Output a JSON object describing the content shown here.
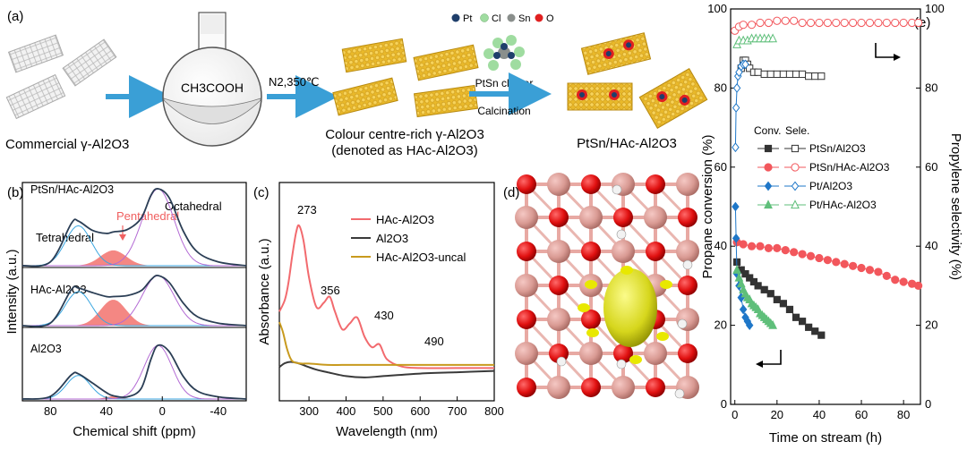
{
  "panel_a": {
    "label": "(a)",
    "commercial_label": "Commercial γ-Al2O3",
    "flask_text": "CH3COOH",
    "condition_text": "N2,350℃",
    "hac_line1": "Colour centre-rich γ-Al2O3",
    "hac_line2": "(denoted as HAc-Al2O3)",
    "cluster_label": "PtSn cluster",
    "calcination_label": "Calcination",
    "product_label": "PtSn/HAc-Al2O3",
    "legend": [
      {
        "name": "Pt",
        "color": "#1f3f6b"
      },
      {
        "name": "Cl",
        "color": "#9fdca0"
      },
      {
        "name": "Sn",
        "color": "#8a8f8c"
      },
      {
        "name": "O",
        "color": "#e02020"
      }
    ]
  },
  "panel_b": {
    "label": "(b)",
    "title": "PtSn/HAc-Al2O3",
    "ylabel": "Intensity (a.u.)",
    "xlabel": "Chemical shift (ppm)",
    "xticks": [
      "80",
      "40",
      "0",
      "-40"
    ],
    "sample_labels": [
      "HAc-Al2O3",
      "Al2O3"
    ],
    "annotations": {
      "tetra": "Tetrahedral",
      "penta": "Pentahedral",
      "octa": "Octahedral"
    }
  },
  "panel_c": {
    "label": "(c)",
    "ylabel": "Absorbance (a.u.)",
    "xlabel": "Wavelength (nm)",
    "xticks": [
      "300",
      "400",
      "500",
      "600",
      "700",
      "800"
    ],
    "peak_labels": [
      "273",
      "356",
      "430",
      "490"
    ],
    "legend": [
      {
        "name": "HAc-Al2O3",
        "color": "#f26a6e"
      },
      {
        "name": "Al2O3",
        "color": "#3a3a3a"
      },
      {
        "name": "HAc-Al2O3-uncal",
        "color": "#c89a1e"
      }
    ]
  },
  "panel_d": {
    "label": "(d)"
  },
  "panel_e": {
    "label": "(e)",
    "ylabel_left": "Propane conversion (%)",
    "ylabel_right": "Propylene selectivity (%)",
    "xlabel": "Time on stream (h)",
    "legend_header_conv": "Conv.",
    "legend_header_sele": "Sele.",
    "legend": [
      {
        "name": "PtSn/Al2O3",
        "color": "#333333",
        "marker": "square"
      },
      {
        "name": "PtSn/HAc-Al2O3",
        "color": "#f2575c",
        "marker": "circle"
      },
      {
        "name": "Pt/Al2O3",
        "color": "#1f77c8",
        "marker": "diamond"
      },
      {
        "name": "Pt/HAc-Al2O3",
        "color": "#5fbf7a",
        "marker": "triangle"
      }
    ]
  },
  "chart_data": [
    {
      "type": "line",
      "panel": "b",
      "xlabel": "Chemical shift (ppm)",
      "ylabel": "Intensity (a.u.)",
      "xlim": [
        100,
        -60
      ],
      "x_reversed": true,
      "xticks": [
        80,
        40,
        0,
        -40
      ],
      "series": [
        {
          "name": "PtSn/HAc-Al2O3",
          "x": [
            100,
            80,
            65,
            60,
            50,
            40,
            35,
            25,
            15,
            8,
            3,
            -5,
            -15,
            -25,
            -40,
            -60
          ],
          "y": [
            0.0,
            0.05,
            0.55,
            0.58,
            0.46,
            0.42,
            0.44,
            0.47,
            0.62,
            0.92,
            1.0,
            0.88,
            0.45,
            0.18,
            0.05,
            0.0
          ]
        },
        {
          "name": "HAc-Al2O3",
          "x": [
            100,
            80,
            65,
            60,
            50,
            40,
            35,
            25,
            15,
            8,
            3,
            -5,
            -15,
            -25,
            -40,
            -60
          ],
          "y": [
            0.0,
            0.05,
            0.72,
            0.75,
            0.66,
            0.58,
            0.58,
            0.6,
            0.7,
            0.92,
            1.0,
            0.86,
            0.45,
            0.18,
            0.05,
            0.0
          ]
        },
        {
          "name": "Al2O3",
          "x": [
            100,
            80,
            65,
            60,
            50,
            40,
            35,
            25,
            15,
            8,
            3,
            -5,
            -15,
            -25,
            -40,
            -60
          ],
          "y": [
            0.0,
            0.05,
            0.45,
            0.47,
            0.3,
            0.12,
            0.06,
            0.04,
            0.2,
            0.75,
            1.0,
            0.88,
            0.42,
            0.15,
            0.04,
            0.0
          ]
        }
      ]
    },
    {
      "type": "line",
      "panel": "c",
      "xlabel": "Wavelength (nm)",
      "ylabel": "Absorbance (a.u.)",
      "xlim": [
        220,
        800
      ],
      "xticks": [
        300,
        400,
        500,
        600,
        700,
        800
      ],
      "series": [
        {
          "name": "HAc-Al2O3",
          "x": [
            220,
            235,
            245,
            255,
            265,
            273,
            285,
            300,
            320,
            340,
            356,
            370,
            390,
            410,
            430,
            450,
            470,
            490,
            510,
            550,
            600,
            700,
            800
          ],
          "y": [
            0.42,
            0.5,
            0.62,
            0.8,
            0.95,
            1.0,
            0.9,
            0.65,
            0.45,
            0.48,
            0.52,
            0.42,
            0.3,
            0.34,
            0.38,
            0.25,
            0.18,
            0.2,
            0.1,
            0.05,
            0.04,
            0.04,
            0.04
          ]
        },
        {
          "name": "Al2O3",
          "x": [
            220,
            235,
            250,
            270,
            290,
            320,
            350,
            400,
            450,
            500,
            600,
            700,
            800
          ],
          "y": [
            0.06,
            0.09,
            0.1,
            0.09,
            0.07,
            0.04,
            0.02,
            -0.01,
            -0.02,
            -0.01,
            0.01,
            0.02,
            0.03
          ]
        },
        {
          "name": "HAc-Al2O3-uncal",
          "x": [
            220,
            230,
            240,
            250,
            260,
            280,
            300,
            350,
            400,
            500,
            600,
            700,
            800
          ],
          "y": [
            0.4,
            0.32,
            0.2,
            0.12,
            0.09,
            0.08,
            0.08,
            0.07,
            0.07,
            0.07,
            0.07,
            0.07,
            0.07
          ]
        }
      ]
    },
    {
      "type": "scatter",
      "panel": "e",
      "xlabel": "Time on stream (h)",
      "ylabel": "Propane conversion (%)",
      "ylabel_right": "Propylene selectivity (%)",
      "xlim": [
        -2,
        88
      ],
      "ylim": [
        0,
        100
      ],
      "ylim_right": [
        0,
        100
      ],
      "xticks": [
        0,
        20,
        40,
        60,
        80
      ],
      "yticks": [
        20,
        40,
        60,
        80,
        100
      ],
      "series": [
        {
          "name": "PtSn/Al2O3",
          "axis": "conversion",
          "x": [
            1,
            3,
            5,
            7,
            9,
            11,
            14,
            17,
            20,
            23,
            26,
            29,
            32,
            35,
            38,
            41
          ],
          "y": [
            36,
            34,
            33,
            32,
            31,
            30,
            29,
            28,
            26.5,
            25.5,
            24,
            22,
            21,
            19.5,
            18.5,
            17.5
          ]
        },
        {
          "name": "PtSn/Al2O3",
          "axis": "selectivity",
          "x": [
            3,
            4,
            5,
            6,
            7,
            9,
            11,
            14,
            17,
            20,
            23,
            26,
            29,
            32,
            35,
            38,
            41
          ],
          "y": [
            85,
            87,
            87,
            86,
            85,
            84,
            84,
            83.5,
            83.5,
            83.5,
            83.5,
            83.5,
            83.5,
            83.5,
            83,
            83,
            83
          ]
        },
        {
          "name": "PtSn/HAc-Al2O3",
          "axis": "conversion",
          "x": [
            1,
            4,
            8,
            12,
            16,
            20,
            24,
            28,
            32,
            36,
            40,
            44,
            48,
            52,
            56,
            60,
            64,
            68,
            72,
            76,
            80,
            84,
            87
          ],
          "y": [
            41,
            40.5,
            40,
            40,
            39.5,
            39.5,
            39,
            38.5,
            38,
            37.5,
            37,
            36.5,
            36,
            35.5,
            35,
            34.5,
            34,
            33.5,
            32.5,
            31.5,
            31,
            30.5,
            30
          ]
        },
        {
          "name": "PtSn/HAc-Al2O3",
          "axis": "selectivity",
          "x": [
            0,
            2,
            4,
            8,
            12,
            16,
            20,
            24,
            28,
            32,
            36,
            40,
            44,
            48,
            52,
            56,
            60,
            64,
            68,
            72,
            76,
            80,
            84,
            87
          ],
          "y": [
            94.5,
            95.5,
            96,
            96,
            96.5,
            96.5,
            97,
            97,
            97,
            96.5,
            96.5,
            96.5,
            96.5,
            96.5,
            96.5,
            96.5,
            96.5,
            96.5,
            96.5,
            96.5,
            96.5,
            96.5,
            96.5,
            96.5
          ]
        },
        {
          "name": "Pt/Al2O3",
          "axis": "conversion",
          "x": [
            0.3,
            0.6,
            1,
            2,
            3,
            4,
            5,
            6,
            7
          ],
          "y": [
            50,
            42,
            33,
            30,
            27,
            24,
            22,
            21,
            20
          ]
        },
        {
          "name": "Pt/Al2O3",
          "axis": "selectivity",
          "x": [
            0.3,
            0.6,
            1,
            1.5,
            2,
            3,
            4,
            5
          ],
          "y": [
            65,
            75,
            80,
            83,
            84,
            85.5,
            86,
            86
          ]
        },
        {
          "name": "Pt/HAc-Al2O3",
          "axis": "conversion",
          "x": [
            1,
            2,
            3,
            4,
            5,
            6,
            7,
            8,
            9,
            10,
            11,
            12,
            13,
            14,
            15,
            16,
            17,
            18
          ],
          "y": [
            34,
            32,
            30.5,
            29,
            28,
            27,
            26.5,
            25.5,
            25,
            24.5,
            24,
            23,
            22.5,
            22,
            21.5,
            21,
            20.5,
            20
          ]
        },
        {
          "name": "Pt/HAc-Al2O3",
          "axis": "selectivity",
          "x": [
            1,
            2,
            4,
            6,
            8,
            10,
            12,
            14,
            16,
            18
          ],
          "y": [
            91,
            92,
            92,
            92,
            92.5,
            92.5,
            92.5,
            92.5,
            92.5,
            92.5
          ]
        }
      ]
    }
  ]
}
